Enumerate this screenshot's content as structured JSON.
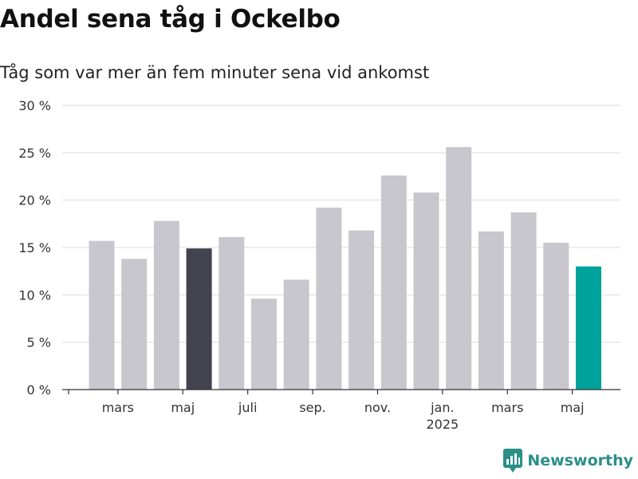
{
  "chart_data": {
    "type": "bar",
    "title": "Andel sena tåg i Ockelbo",
    "subtitle": "Tåg som var mer än fem minuter sena vid ankomst",
    "values": [
      15.7,
      13.8,
      17.8,
      14.9,
      16.1,
      9.6,
      11.6,
      19.2,
      16.8,
      22.6,
      20.8,
      25.6,
      16.7,
      18.7,
      15.5,
      13.0
    ],
    "highlight": {
      "4": "#43424f",
      "16": "#00a39b"
    },
    "bar_color": "#c8c7cd",
    "y_ticks": [
      "0 %",
      "5 %",
      "10 %",
      "15 %",
      "20 %",
      "25 %",
      "30 %"
    ],
    "ylim": [
      0,
      30
    ],
    "x_ticks": [
      {
        "label": "mars",
        "bar": 2
      },
      {
        "label": "maj",
        "bar": 4
      },
      {
        "label": "juli",
        "bar": 6
      },
      {
        "label": "sep.",
        "bar": 8
      },
      {
        "label": "nov.",
        "bar": 10
      },
      {
        "label": "jan.",
        "bar": 12,
        "year": "2025"
      },
      {
        "label": "mars",
        "bar": 14
      },
      {
        "label": "maj",
        "bar": 16
      }
    ],
    "grid": true,
    "legend": "none"
  },
  "brand": {
    "name": "Newsworthy",
    "color": "#2a8f88"
  }
}
